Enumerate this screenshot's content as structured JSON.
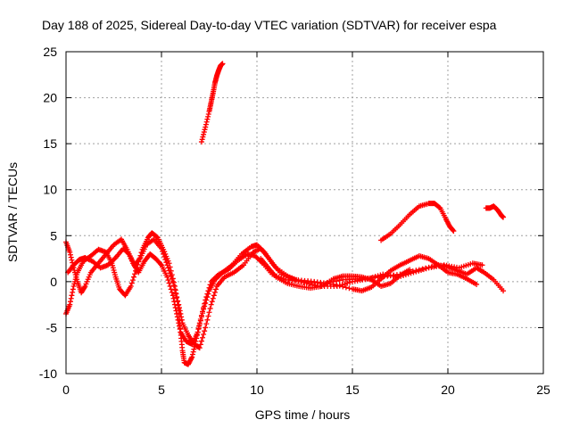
{
  "chart_data": {
    "type": "scatter",
    "title": "Day 188 of 2025, Sidereal Day-to-day VTEC variation (SDTVAR) for receiver espa",
    "xlabel": "GPS time / hours",
    "ylabel": "SDTVAR / TECUs",
    "xlim": [
      0,
      25
    ],
    "ylim": [
      -10,
      25
    ],
    "xticks": [
      0,
      5,
      10,
      15,
      20,
      25
    ],
    "yticks": [
      -10,
      -5,
      0,
      5,
      10,
      15,
      20,
      25
    ],
    "grid": true,
    "marker": "+",
    "color": "#ff0000",
    "series": [
      {
        "name": "track-a",
        "points": [
          [
            0.0,
            -3.5
          ],
          [
            0.2,
            -2.5
          ],
          [
            0.4,
            -0.5
          ],
          [
            0.6,
            1.0
          ],
          [
            0.9,
            2.2
          ],
          [
            1.3,
            2.8
          ],
          [
            1.7,
            3.5
          ],
          [
            2.1,
            3.2
          ],
          [
            2.4,
            2.0
          ],
          [
            2.6,
            0.5
          ],
          [
            2.8,
            -0.8
          ],
          [
            3.1,
            -1.5
          ],
          [
            3.4,
            -0.5
          ],
          [
            3.7,
            1.5
          ],
          [
            4.0,
            3.5
          ],
          [
            4.3,
            4.8
          ],
          [
            4.5,
            5.3
          ],
          [
            4.8,
            4.8
          ],
          [
            5.1,
            3.5
          ],
          [
            5.4,
            2.0
          ],
          [
            5.7,
            -0.5
          ],
          [
            5.9,
            -3.0
          ],
          [
            6.0,
            -5.5
          ],
          [
            6.1,
            -7.5
          ],
          [
            6.2,
            -8.8
          ],
          [
            6.4,
            -9.0
          ],
          [
            6.6,
            -8.2
          ],
          [
            6.8,
            -6.5
          ],
          [
            7.0,
            -4.5
          ],
          [
            7.3,
            -2.0
          ],
          [
            7.6,
            0.0
          ],
          [
            8.0,
            0.8
          ],
          [
            8.5,
            1.3
          ],
          [
            9.0,
            2.3
          ],
          [
            9.5,
            3.0
          ],
          [
            9.9,
            2.8
          ],
          [
            10.3,
            2.0
          ],
          [
            10.8,
            0.8
          ],
          [
            11.5,
            0.2
          ],
          [
            12.5,
            0.0
          ],
          [
            13.5,
            -0.2
          ],
          [
            14.5,
            0.2
          ],
          [
            15.5,
            0.3
          ],
          [
            16.5,
            0.5
          ],
          [
            17.5,
            0.8
          ],
          [
            18.5,
            1.3
          ],
          [
            19.5,
            1.8
          ],
          [
            20.0,
            1.6
          ],
          [
            20.5,
            1.2
          ],
          [
            21.0,
            0.8
          ],
          [
            21.5,
            1.5
          ],
          [
            21.9,
            1.0
          ],
          [
            22.4,
            0.2
          ],
          [
            22.9,
            -1.0
          ]
        ]
      },
      {
        "name": "track-b",
        "points": [
          [
            0.0,
            4.3
          ],
          [
            0.2,
            3.2
          ],
          [
            0.4,
            1.5
          ],
          [
            0.6,
            0.0
          ],
          [
            0.8,
            -1.2
          ],
          [
            1.0,
            -0.5
          ],
          [
            1.3,
            1.0
          ],
          [
            1.7,
            2.0
          ],
          [
            2.1,
            3.0
          ],
          [
            2.5,
            4.0
          ],
          [
            2.9,
            4.6
          ],
          [
            3.2,
            3.5
          ],
          [
            3.5,
            2.0
          ],
          [
            3.8,
            1.0
          ],
          [
            4.1,
            2.2
          ],
          [
            4.4,
            3.0
          ],
          [
            4.7,
            2.5
          ],
          [
            5.0,
            1.8
          ],
          [
            5.3,
            0.5
          ],
          [
            5.6,
            -1.5
          ],
          [
            5.8,
            -3.5
          ],
          [
            6.0,
            -5.5
          ],
          [
            6.3,
            -6.5
          ],
          [
            6.6,
            -6.8
          ],
          [
            6.9,
            -5.5
          ],
          [
            7.2,
            -3.0
          ],
          [
            7.5,
            -1.0
          ],
          [
            7.8,
            0.2
          ],
          [
            8.2,
            1.0
          ],
          [
            8.7,
            1.8
          ],
          [
            9.2,
            3.0
          ],
          [
            9.7,
            3.8
          ],
          [
            10.0,
            4.0
          ],
          [
            10.4,
            3.2
          ],
          [
            10.8,
            2.0
          ],
          [
            11.3,
            0.8
          ],
          [
            12.0,
            0.2
          ],
          [
            13.0,
            0.0
          ],
          [
            14.0,
            -0.3
          ],
          [
            15.0,
            -0.8
          ],
          [
            15.5,
            -1.0
          ],
          [
            16.0,
            -0.6
          ],
          [
            16.5,
            0.3
          ],
          [
            17.0,
            1.2
          ],
          [
            17.5,
            1.8
          ],
          [
            18.0,
            2.3
          ],
          [
            18.5,
            2.8
          ],
          [
            19.0,
            2.5
          ],
          [
            19.5,
            1.8
          ],
          [
            20.0,
            1.0
          ],
          [
            20.5,
            0.8
          ],
          [
            21.0,
            0.3
          ],
          [
            21.5,
            -0.3
          ]
        ]
      },
      {
        "name": "track-c",
        "points": [
          [
            0.1,
            1.0
          ],
          [
            0.4,
            1.8
          ],
          [
            0.7,
            2.4
          ],
          [
            1.0,
            2.6
          ],
          [
            1.4,
            2.2
          ],
          [
            1.8,
            1.5
          ],
          [
            2.2,
            1.8
          ],
          [
            2.6,
            2.6
          ],
          [
            3.0,
            3.6
          ],
          [
            3.3,
            3.0
          ],
          [
            3.6,
            1.8
          ],
          [
            3.9,
            2.6
          ],
          [
            4.2,
            4.0
          ],
          [
            4.6,
            4.6
          ],
          [
            5.0,
            3.6
          ],
          [
            5.3,
            1.8
          ],
          [
            5.6,
            0.0
          ],
          [
            5.9,
            -2.5
          ],
          [
            6.1,
            -4.5
          ],
          [
            6.4,
            -5.8
          ],
          [
            6.7,
            -6.8
          ],
          [
            7.0,
            -7.2
          ],
          [
            7.3,
            -5.0
          ],
          [
            7.6,
            -2.5
          ],
          [
            7.9,
            -0.5
          ],
          [
            8.3,
            0.5
          ],
          [
            8.8,
            1.0
          ],
          [
            9.3,
            1.8
          ],
          [
            9.8,
            3.2
          ],
          [
            10.2,
            3.6
          ],
          [
            10.6,
            2.6
          ],
          [
            11.0,
            1.5
          ],
          [
            11.6,
            0.6
          ],
          [
            12.3,
            0.0
          ],
          [
            13.2,
            -0.5
          ],
          [
            14.2,
            -0.5
          ],
          [
            15.0,
            0.0
          ],
          [
            15.8,
            0.3
          ],
          [
            16.6,
            0.8
          ],
          [
            17.4,
            0.5
          ],
          [
            18.2,
            1.0
          ],
          [
            19.0,
            1.5
          ],
          [
            19.8,
            1.8
          ],
          [
            20.6,
            1.5
          ],
          [
            21.3,
            2.0
          ],
          [
            21.8,
            1.8
          ]
        ]
      },
      {
        "name": "track-d",
        "points": [
          [
            10.2,
            2.5
          ],
          [
            10.6,
            1.5
          ],
          [
            11.0,
            0.5
          ],
          [
            11.6,
            -0.2
          ],
          [
            12.2,
            -0.5
          ],
          [
            12.8,
            -0.7
          ],
          [
            13.4,
            -0.5
          ],
          [
            14.0,
            0.3
          ],
          [
            14.5,
            0.6
          ],
          [
            15.0,
            0.6
          ],
          [
            15.5,
            0.5
          ],
          [
            16.0,
            0.2
          ],
          [
            16.5,
            -0.5
          ],
          [
            17.0,
            -0.2
          ],
          [
            17.5,
            0.7
          ],
          [
            18.0,
            1.3
          ]
        ]
      },
      {
        "name": "track-e",
        "points": [
          [
            7.1,
            15.2
          ],
          [
            7.3,
            16.8
          ],
          [
            7.5,
            18.5
          ],
          [
            7.6,
            19.5
          ],
          [
            7.7,
            20.5
          ],
          [
            7.8,
            21.6
          ],
          [
            7.9,
            22.4
          ],
          [
            8.0,
            23.0
          ],
          [
            8.1,
            23.5
          ],
          [
            8.2,
            23.7
          ]
        ]
      },
      {
        "name": "track-f",
        "points": [
          [
            16.5,
            4.5
          ],
          [
            17.0,
            5.2
          ],
          [
            17.5,
            6.2
          ],
          [
            18.0,
            7.3
          ],
          [
            18.5,
            8.2
          ],
          [
            19.0,
            8.5
          ],
          [
            19.3,
            8.5
          ],
          [
            19.6,
            8.0
          ],
          [
            19.9,
            6.8
          ],
          [
            20.1,
            6.0
          ],
          [
            20.3,
            5.5
          ]
        ]
      },
      {
        "name": "track-g",
        "points": [
          [
            22.0,
            8.0
          ],
          [
            22.2,
            8.0
          ],
          [
            22.4,
            8.2
          ],
          [
            22.6,
            7.8
          ],
          [
            22.8,
            7.2
          ],
          [
            22.9,
            7.0
          ]
        ]
      }
    ]
  }
}
